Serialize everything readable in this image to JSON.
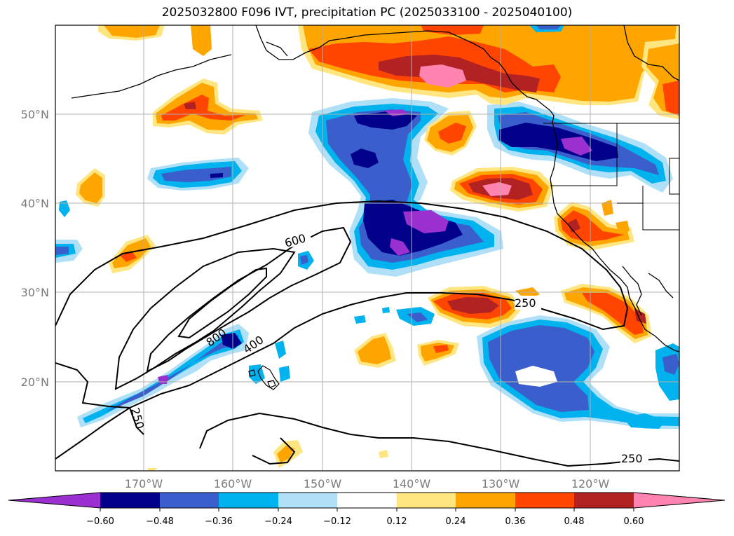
{
  "title": "2025032800 F096 IVT, precipitation PC (2025033100 - 2025040100)",
  "longitude_labels": [
    "170°W",
    "160°W",
    "150°W",
    "140°W",
    "130°W",
    "120°W"
  ],
  "latitude_labels": [
    "50°N",
    "40°N",
    "30°N",
    "20°N"
  ],
  "colorbar": {
    "tick_labels": [
      "−0.60",
      "−0.48",
      "−0.36",
      "−0.24",
      "−0.12",
      "0.12",
      "0.24",
      "0.36",
      "0.48",
      "0.60"
    ],
    "colors": [
      "#9b30d0",
      "#00008b",
      "#3a5fcd",
      "#00b2ee",
      "#afe0f8",
      "#ffffff",
      "#ffe680",
      "#ffa500",
      "#ff4500",
      "#b22222",
      "#ff85b0"
    ]
  },
  "ivt_contour_labels": [
    "250",
    "400",
    "600",
    "800",
    "250",
    "250"
  ]
}
